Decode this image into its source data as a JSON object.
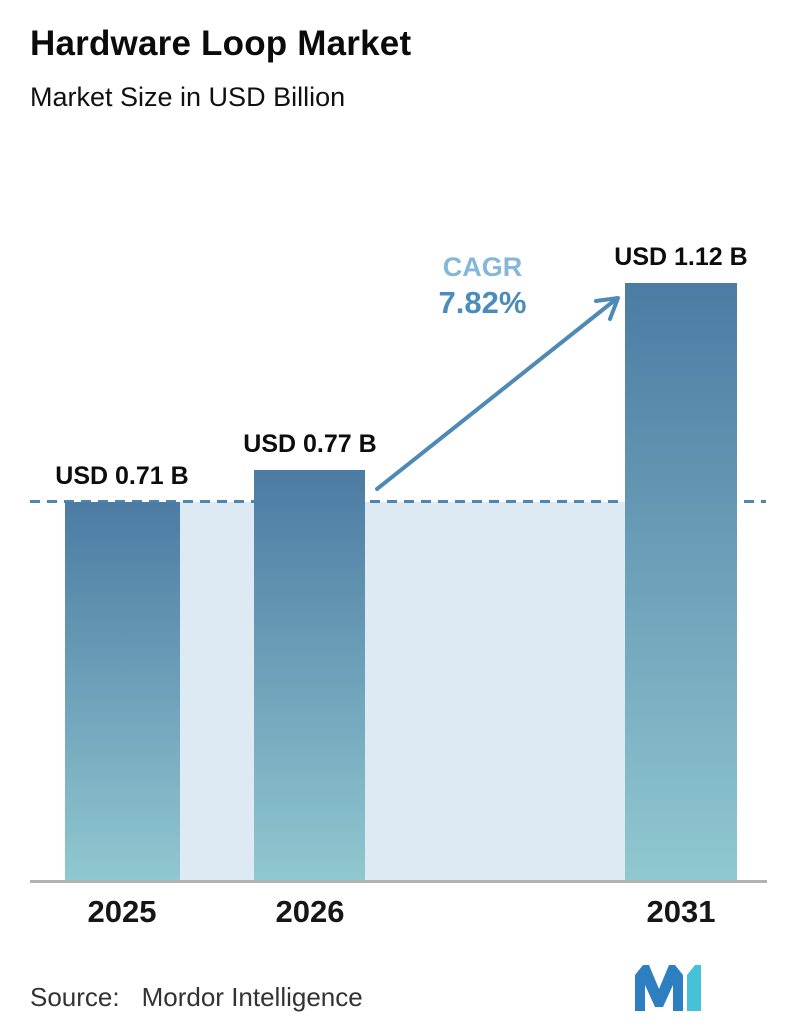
{
  "header": {
    "title": "Hardware Loop Market",
    "subtitle": "Market Size in USD Billion"
  },
  "chart_data": {
    "type": "bar",
    "title": "Hardware Loop Market",
    "subtitle": "Market Size in USD Billion",
    "unit": "USD Billion",
    "categories": [
      "2025",
      "2026",
      "2031"
    ],
    "values": [
      0.71,
      0.77,
      1.12
    ],
    "value_labels": [
      "USD 0.71 B",
      "USD 0.77 B",
      "USD 1.12 B"
    ],
    "baseline_value": 0.71,
    "ylim": [
      0,
      1.25
    ],
    "grid": false,
    "legend": false,
    "annotations": {
      "cagr_label": "CAGR",
      "cagr_value": "7.82%",
      "arrow": "trend arrow from 2026 bar top to 2031 bar top"
    },
    "colors": {
      "bar_gradient_top": "#4c7ba3",
      "bar_gradient_bottom": "#90c8d0",
      "band": "#dde9f3",
      "dashed_line": "#4e86ad",
      "arrow": "#4e8ab4",
      "cagr_label": "#85b7d8",
      "cagr_value": "#4b8cba",
      "axis": "#b3b1b1"
    }
  },
  "footer": {
    "source_label": "Source:",
    "source_value": "Mordor Intelligence"
  },
  "logo": {
    "name": "mordor-intelligence-logo",
    "blue": "#2d7fc1",
    "teal": "#45c2d8"
  }
}
